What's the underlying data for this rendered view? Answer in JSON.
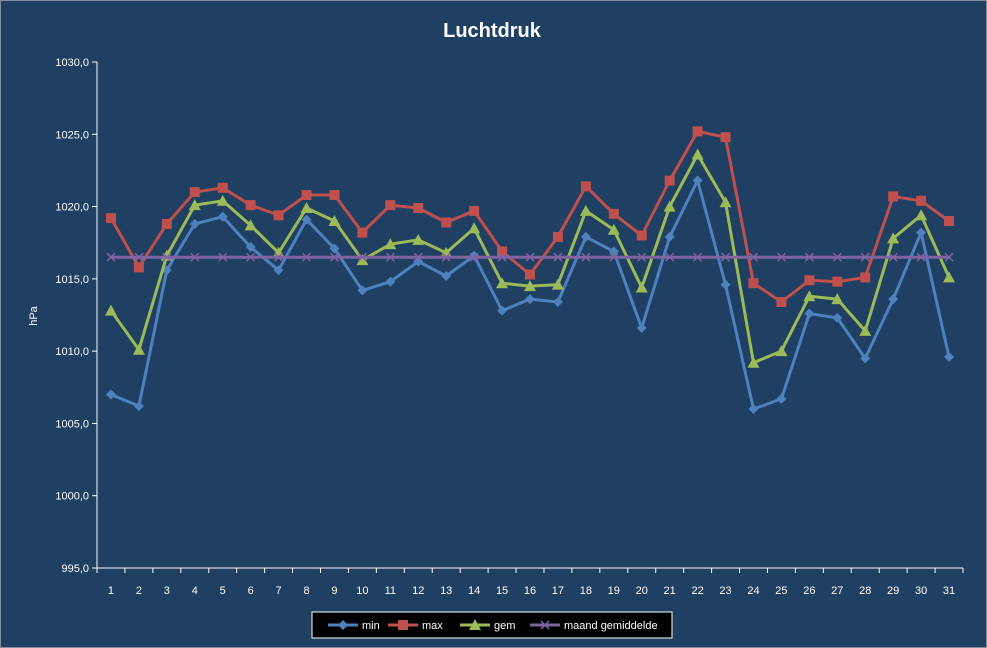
{
  "chart_data": {
    "type": "line",
    "title": "Luchtdruk",
    "xlabel": "",
    "ylabel": "hPa",
    "ylim": [
      995,
      1030
    ],
    "ytick_step": 5,
    "ytick_labels": [
      "995,0",
      "1000,0",
      "1005,0",
      "1010,0",
      "1015,0",
      "1020,0",
      "1025,0",
      "1030,0"
    ],
    "categories": [
      "1",
      "2",
      "3",
      "4",
      "5",
      "6",
      "7",
      "8",
      "9",
      "10",
      "11",
      "12",
      "13",
      "14",
      "15",
      "16",
      "17",
      "18",
      "19",
      "20",
      "21",
      "22",
      "23",
      "24",
      "25",
      "26",
      "27",
      "28",
      "29",
      "30",
      "31"
    ],
    "grid": false,
    "legend_position": "bottom",
    "series": [
      {
        "name": "min",
        "color": "#4f81bd",
        "marker": "diamond",
        "values": [
          1007.0,
          1006.2,
          1015.6,
          1018.8,
          1019.3,
          1017.2,
          1015.6,
          1019.1,
          1017.1,
          1014.2,
          1014.8,
          1016.2,
          1015.2,
          1016.6,
          1012.8,
          1013.6,
          1013.4,
          1017.9,
          1016.9,
          1011.6,
          1017.9,
          1021.8,
          1014.6,
          1006.0,
          1006.7,
          1012.6,
          1012.3,
          1009.5,
          1013.6,
          1018.2,
          1009.6
        ]
      },
      {
        "name": "max",
        "color": "#c0504d",
        "marker": "square",
        "values": [
          1019.2,
          1015.8,
          1018.8,
          1021.0,
          1021.3,
          1020.1,
          1019.4,
          1020.8,
          1020.8,
          1018.2,
          1020.1,
          1019.9,
          1018.9,
          1019.7,
          1016.9,
          1015.3,
          1017.9,
          1021.4,
          1019.5,
          1018.0,
          1021.8,
          1025.2,
          1024.8,
          1014.7,
          1013.4,
          1014.9,
          1014.8,
          1015.1,
          1020.7,
          1020.4,
          1019.0
        ]
      },
      {
        "name": "gem",
        "color": "#9bbb59",
        "marker": "triangle",
        "values": [
          1012.8,
          1010.1,
          1016.6,
          1020.1,
          1020.4,
          1018.7,
          1016.8,
          1019.9,
          1019.0,
          1016.3,
          1017.4,
          1017.7,
          1016.8,
          1018.5,
          1014.7,
          1014.5,
          1014.6,
          1019.7,
          1018.4,
          1014.4,
          1020.0,
          1023.6,
          1020.3,
          1009.2,
          1010.0,
          1013.8,
          1013.6,
          1011.4,
          1017.8,
          1019.4,
          1015.1
        ]
      },
      {
        "name": "maand gemiddelde",
        "color": "#8064a2",
        "marker": "x",
        "values": [
          1016.5,
          1016.5,
          1016.5,
          1016.5,
          1016.5,
          1016.5,
          1016.5,
          1016.5,
          1016.5,
          1016.5,
          1016.5,
          1016.5,
          1016.5,
          1016.5,
          1016.5,
          1016.5,
          1016.5,
          1016.5,
          1016.5,
          1016.5,
          1016.5,
          1016.5,
          1016.5,
          1016.5,
          1016.5,
          1016.5,
          1016.5,
          1016.5,
          1016.5,
          1016.5,
          1016.5
        ]
      }
    ]
  }
}
